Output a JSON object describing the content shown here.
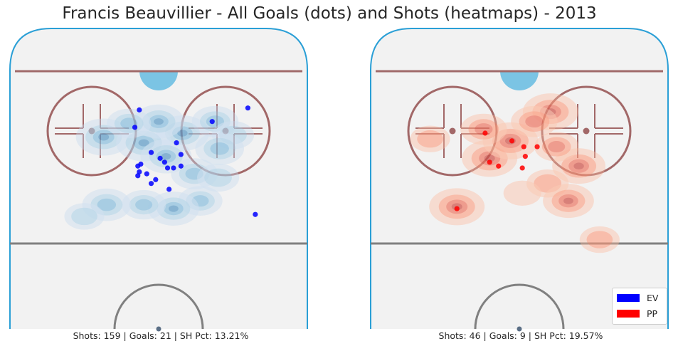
{
  "title": "Francis Beauvillier - All Goals (dots) and Shots (heatmaps) - 2013",
  "colors": {
    "rink_fill": "#f2f2f2",
    "board": "#2a9fd6",
    "goal_line": "#a06a6a",
    "circle": "#a26868",
    "center_line": "#808080",
    "crease": "#7bc4e4",
    "ev": "#0000ff",
    "pp": "#ff0000"
  },
  "legend": [
    {
      "label": "EV",
      "color": "#0000ff"
    },
    {
      "label": "PP",
      "color": "#ff0000"
    }
  ],
  "chart_data": [
    {
      "type": "scatter",
      "panel": "left",
      "strength": "EV",
      "caption": "Shots: 159 | Goals: 21 | SH Pct: 13.21%",
      "heatmap_color": "blue",
      "goals": [
        {
          "x": 60,
          "y": 70
        },
        {
          "x": 36,
          "y": 63
        },
        {
          "x": 65,
          "y": 15
        },
        {
          "x": -13,
          "y": 69
        },
        {
          "x": -16,
          "y": 60
        },
        {
          "x": -5,
          "y": 47
        },
        {
          "x": 12,
          "y": 52
        },
        {
          "x": 15,
          "y": 46
        },
        {
          "x": 1,
          "y": 44
        },
        {
          "x": 4,
          "y": 42
        },
        {
          "x": 6,
          "y": 39
        },
        {
          "x": -12,
          "y": 41
        },
        {
          "x": -14,
          "y": 40
        },
        {
          "x": 10,
          "y": 39
        },
        {
          "x": 15,
          "y": 40
        },
        {
          "x": -13,
          "y": 37
        },
        {
          "x": -14,
          "y": 35
        },
        {
          "x": -8,
          "y": 36
        },
        {
          "x": -2,
          "y": 33
        },
        {
          "x": -5,
          "y": 31
        },
        {
          "x": 7,
          "y": 28
        }
      ],
      "heat": [
        {
          "x": -37,
          "y": 55,
          "w": 1.0
        },
        {
          "x": 16,
          "y": 57,
          "w": 0.9
        },
        {
          "x": -10,
          "y": 52,
          "w": 1.0
        },
        {
          "x": 0,
          "y": 63,
          "w": 0.8
        },
        {
          "x": 5,
          "y": 45,
          "w": 0.8
        },
        {
          "x": 24,
          "y": 36,
          "w": 0.6
        },
        {
          "x": 38,
          "y": 63,
          "w": 0.6
        },
        {
          "x": 50,
          "y": 56,
          "w": 0.4
        },
        {
          "x": 41,
          "y": 49,
          "w": 0.7
        },
        {
          "x": 28,
          "y": 22,
          "w": 0.5
        },
        {
          "x": 10,
          "y": 18,
          "w": 0.8
        },
        {
          "x": -10,
          "y": 20,
          "w": 0.5
        },
        {
          "x": -35,
          "y": 20,
          "w": 0.7
        },
        {
          "x": -50,
          "y": 14,
          "w": 0.3
        },
        {
          "x": 40,
          "y": 34,
          "w": 0.4
        },
        {
          "x": -20,
          "y": 62,
          "w": 0.5
        }
      ]
    },
    {
      "type": "scatter",
      "panel": "right",
      "strength": "PP",
      "caption": "Shots: 46 | Goals: 9 | SH Pct: 19.57%",
      "heatmap_color": "red",
      "goals": [
        {
          "x": -23,
          "y": 57
        },
        {
          "x": -5,
          "y": 53
        },
        {
          "x": 3,
          "y": 50
        },
        {
          "x": 4,
          "y": 45
        },
        {
          "x": -20,
          "y": 42
        },
        {
          "x": -14,
          "y": 40
        },
        {
          "x": 2,
          "y": 39
        },
        {
          "x": 12,
          "y": 50
        },
        {
          "x": -42,
          "y": 18
        }
      ],
      "heat": [
        {
          "x": -20,
          "y": 44,
          "w": 1.0
        },
        {
          "x": -6,
          "y": 53,
          "w": 1.0
        },
        {
          "x": 21,
          "y": 68,
          "w": 1.0
        },
        {
          "x": 40,
          "y": 40,
          "w": 0.9
        },
        {
          "x": 19,
          "y": 31,
          "w": 0.4
        },
        {
          "x": 33,
          "y": 22,
          "w": 0.8
        },
        {
          "x": -42,
          "y": 19,
          "w": 1.0
        },
        {
          "x": -60,
          "y": 54,
          "w": 0.3
        },
        {
          "x": -24,
          "y": 59,
          "w": 0.6
        },
        {
          "x": 54,
          "y": 2,
          "w": 0.3
        },
        {
          "x": 10,
          "y": 63,
          "w": 0.6
        },
        {
          "x": 25,
          "y": 50,
          "w": 0.5
        },
        {
          "x": 2,
          "y": 26,
          "w": 0.2
        }
      ]
    }
  ]
}
